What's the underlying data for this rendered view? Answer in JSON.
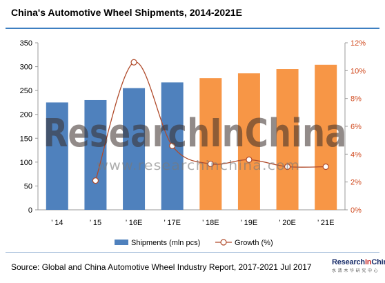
{
  "title": "China's Automotive Wheel Shipments, 2014-2021E",
  "source": "Source: Global and China Automotive Wheel Industry Report, 2017-2021  Jul 2017",
  "logo": {
    "main": "ResearchInChina",
    "sub": "水 清 木 华 研 究 中 心"
  },
  "watermark": {
    "main": "ResearchInChina",
    "url": "www.researchinchina.com"
  },
  "colors": {
    "actual_bar": "#4f81bd",
    "forecast_bar": "#f79646",
    "growth_line": "#b04a2a",
    "title_rule": "#3d7fc1"
  },
  "chart_data": {
    "type": "bar",
    "categories": [
      "’ 14",
      "’ 15",
      "’ 16E",
      "’ 17E",
      "’ 18E",
      "’ 19E",
      "’ 20E",
      "’ 21E"
    ],
    "series": [
      {
        "name": "Shipments (mln pcs)",
        "type": "bar",
        "axis": "left",
        "values": [
          225,
          230,
          255,
          267,
          276,
          286,
          295,
          304
        ]
      },
      {
        "name": "Growth (%)",
        "type": "line",
        "axis": "right",
        "values": [
          null,
          2.1,
          10.6,
          4.6,
          3.3,
          3.6,
          3.1,
          3.1
        ]
      }
    ],
    "bar_colors": [
      "#4f81bd",
      "#4f81bd",
      "#4f81bd",
      "#4f81bd",
      "#f79646",
      "#f79646",
      "#f79646",
      "#f79646"
    ],
    "y_left": {
      "min": 0,
      "max": 350,
      "ticks": [
        "0",
        "50",
        "100",
        "150",
        "200",
        "250",
        "300",
        "350"
      ]
    },
    "y_right": {
      "min": 0,
      "max": 12,
      "ticks": [
        "0%",
        "2%",
        "4%",
        "6%",
        "8%",
        "10%",
        "12%"
      ]
    },
    "grid": false,
    "legend_position": "bottom"
  }
}
